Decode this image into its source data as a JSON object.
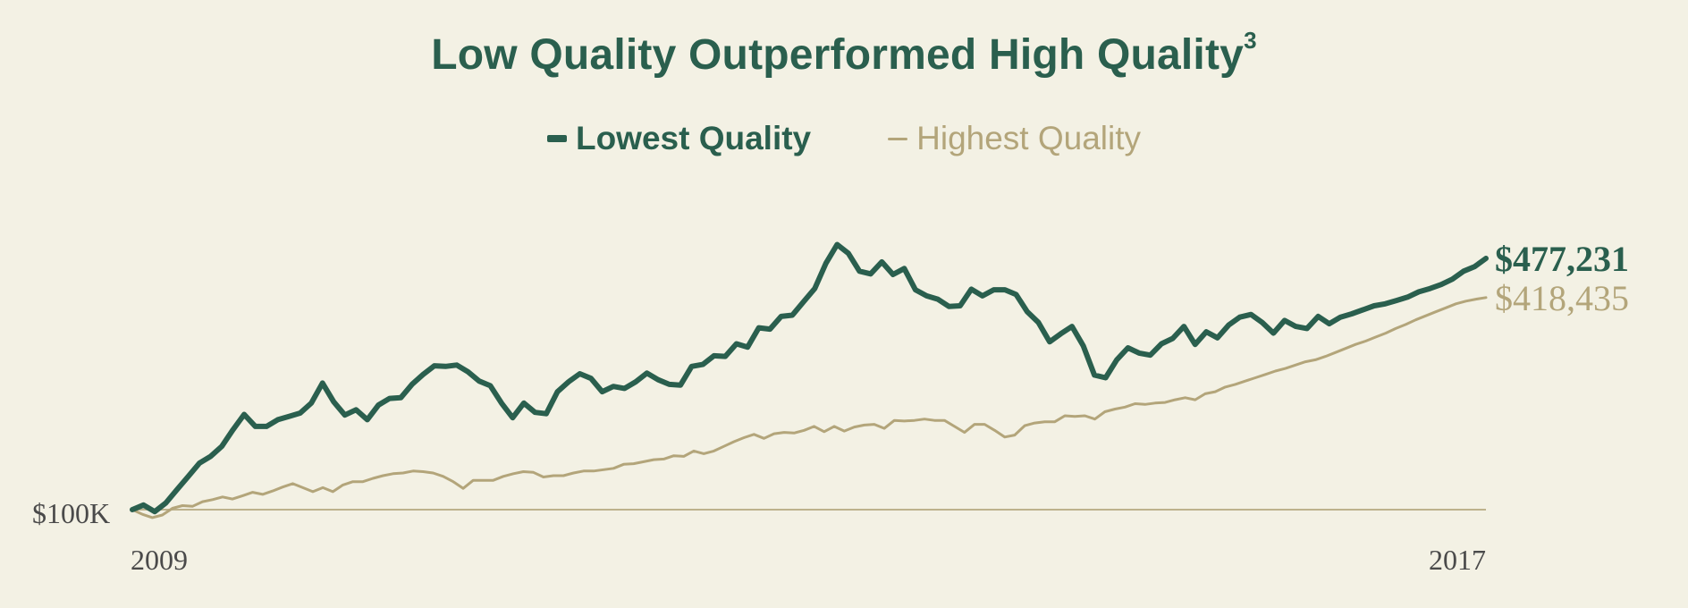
{
  "colors": {
    "background": "#f3f1e4",
    "lowest": "#2a5f4e",
    "highest": "#b3a57a",
    "baseline": "#bdb28c",
    "axis_text": "#4a4a4a"
  },
  "chart_data": {
    "type": "line",
    "title": "Low Quality Outperformed High Quality",
    "title_superscript": "3",
    "baseline_label": "$100K",
    "x_start_label": "2009",
    "x_end_label": "2017",
    "xlabel": "",
    "ylabel": "",
    "ylim": [
      80,
      650
    ],
    "grid": false,
    "legend": "top-center",
    "series": [
      {
        "name": "Lowest Quality",
        "end_label": "$477,231",
        "values": [
          100,
          107,
          97,
          110,
          130,
          150,
          170,
          180,
          195,
          220,
          243,
          225,
          225,
          235,
          240,
          245,
          260,
          290,
          262,
          242,
          250,
          235,
          257,
          267,
          268,
          288,
          303,
          316,
          315,
          317,
          307,
          293,
          286,
          260,
          238,
          260,
          246,
          244,
          277,
          292,
          304,
          297,
          277,
          285,
          282,
          292,
          305,
          295,
          288,
          287,
          315,
          318,
          331,
          330,
          349,
          344,
          373,
          371,
          390,
          392,
          412,
          432,
          470,
          498,
          485,
          458,
          454,
          472,
          453,
          462,
          430,
          421,
          416,
          405,
          406,
          431,
          421,
          430,
          430,
          423,
          397,
          381,
          352,
          364,
          375,
          346,
          302,
          298,
          325,
          343,
          335,
          332,
          349,
          357,
          375,
          348,
          367,
          358,
          377,
          389,
          393,
          381,
          365,
          384,
          375,
          372,
          390,
          379,
          389,
          394,
          400,
          406,
          409,
          414,
          419,
          427,
          432,
          438,
          446,
          458,
          465,
          477.231
        ],
        "dense_tail_note": ""
      },
      {
        "name": "Highest Quality",
        "end_label": "$418,435",
        "values": [
          100,
          93,
          88,
          92,
          102,
          106,
          105,
          112,
          115,
          119,
          116,
          121,
          126,
          123,
          128,
          134,
          139,
          133,
          127,
          133,
          127,
          137,
          142,
          142,
          147,
          151,
          154,
          155,
          158,
          157,
          155,
          150,
          142,
          132,
          144,
          144,
          144,
          150,
          154,
          157,
          156,
          149,
          151,
          151,
          155,
          158,
          158,
          160,
          162,
          168,
          169,
          172,
          175,
          176,
          181,
          180,
          188,
          184,
          188,
          195,
          202,
          208,
          213,
          207,
          214,
          216,
          215,
          219,
          225,
          217,
          225,
          218,
          224,
          227,
          228,
          222,
          234,
          233,
          234,
          236,
          234,
          234,
          225,
          216,
          228,
          228,
          219,
          209,
          212,
          226,
          230,
          232,
          232,
          241,
          240,
          241,
          236,
          247,
          251,
          254,
          259,
          258,
          260,
          261,
          265,
          268,
          265,
          274,
          277,
          284,
          288,
          293,
          298,
          303,
          308,
          312,
          317,
          322,
          325,
          330,
          336,
          342,
          348,
          353,
          359,
          365,
          372,
          378,
          385,
          391,
          397,
          403,
          409,
          413,
          416,
          418.435
        ]
      }
    ]
  }
}
